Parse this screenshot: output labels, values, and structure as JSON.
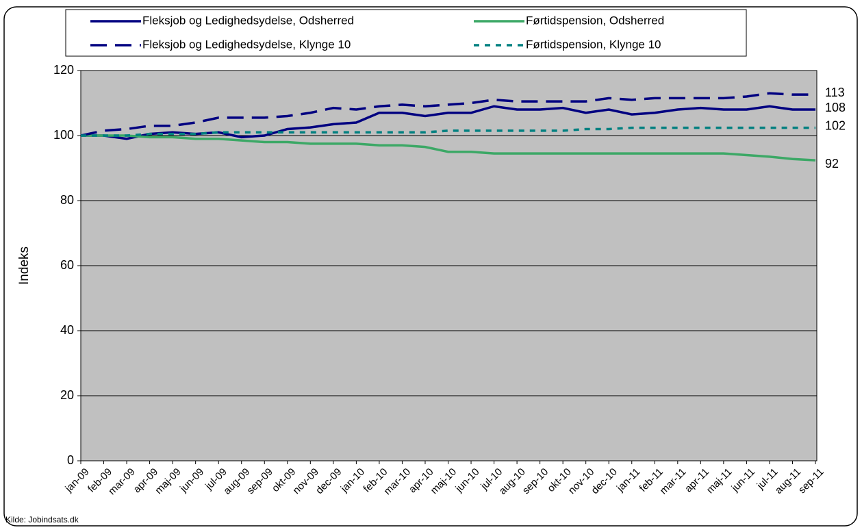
{
  "chart_data": {
    "type": "line",
    "ylabel": "Indeks",
    "source": "Kilde: Jobindsats.dk",
    "categories": [
      "jan-09",
      "feb-09",
      "mar-09",
      "apr-09",
      "maj-09",
      "jun-09",
      "jul-09",
      "aug-09",
      "sep-09",
      "okt-09",
      "nov-09",
      "dec-09",
      "jan-10",
      "feb-10",
      "mar-10",
      "apr-10",
      "maj-10",
      "jun-10",
      "jul-10",
      "aug-10",
      "sep-10",
      "okt-10",
      "nov-10",
      "dec-10",
      "jan-11",
      "feb-11",
      "mar-11",
      "apr-11",
      "maj-11",
      "jun-11",
      "jul-11",
      "aug-11",
      "sep-11"
    ],
    "series": [
      {
        "name": "Fleksjob og Ledighedsydelse, Odsherred",
        "color": "#000080",
        "dash": "solid",
        "values": [
          100,
          100,
          99,
          100.5,
          101,
          100.5,
          101,
          99.5,
          100,
          102,
          102.5,
          103.5,
          104,
          107,
          107,
          106,
          107,
          107,
          109,
          108,
          108,
          108.5,
          107,
          108,
          106.5,
          107,
          108,
          108.5,
          108,
          108,
          109,
          108,
          108
        ],
        "value_labels": [
          null,
          null,
          null,
          null,
          null,
          null,
          null,
          null,
          null,
          null,
          null,
          null,
          null,
          null,
          null,
          null,
          null,
          null,
          null,
          null,
          null,
          null,
          null,
          null,
          null,
          null,
          null,
          null,
          null,
          null,
          null,
          null,
          "108"
        ]
      },
      {
        "name": "Førtidspension, Odsherred",
        "color": "#3ca866",
        "dash": "solid",
        "values": [
          100,
          100,
          100,
          99.5,
          99.5,
          99,
          99,
          98.5,
          98,
          98,
          97.5,
          97.5,
          97.5,
          97,
          97,
          96.5,
          95,
          95,
          94.5,
          94.5,
          94.5,
          94.5,
          94.5,
          94.5,
          94.5,
          94.5,
          94.5,
          94.5,
          94.5,
          94,
          93.5,
          92.8,
          92.4
        ],
        "value_labels": [
          null,
          null,
          null,
          null,
          null,
          null,
          null,
          null,
          null,
          null,
          null,
          null,
          null,
          null,
          null,
          null,
          null,
          null,
          null,
          null,
          null,
          null,
          null,
          null,
          null,
          null,
          null,
          null,
          null,
          null,
          null,
          null,
          "92"
        ]
      },
      {
        "name": "Fleksjob og Ledighedsydelse, Klynge 10",
        "color": "#000080",
        "dash": "dashed",
        "values": [
          100,
          101.5,
          102,
          103,
          103,
          104,
          105.5,
          105.5,
          105.5,
          106,
          107,
          108.5,
          108,
          109,
          109.5,
          109,
          109.5,
          110,
          111,
          110.5,
          110.5,
          110.5,
          110.5,
          111.5,
          111,
          111.5,
          111.5,
          111.5,
          111.5,
          112,
          113,
          112.6,
          112.6
        ],
        "value_labels": [
          null,
          null,
          null,
          null,
          null,
          null,
          null,
          null,
          null,
          null,
          null,
          null,
          null,
          null,
          null,
          null,
          null,
          null,
          null,
          null,
          null,
          null,
          null,
          null,
          null,
          null,
          null,
          null,
          null,
          null,
          null,
          null,
          "113"
        ]
      },
      {
        "name": "Førtidspension, Klynge 10",
        "color": "#008080",
        "dash": "dotted",
        "values": [
          100,
          100,
          100,
          100.5,
          100.5,
          100.5,
          101,
          101,
          101,
          101,
          101,
          101,
          101,
          101,
          101,
          101,
          101.5,
          101.5,
          101.5,
          101.5,
          101.5,
          101.5,
          102,
          102,
          102.4,
          102.4,
          102.4,
          102.4,
          102.4,
          102.4,
          102.4,
          102.4,
          102.4
        ],
        "value_labels": [
          null,
          null,
          null,
          null,
          null,
          null,
          null,
          null,
          null,
          null,
          null,
          null,
          null,
          null,
          null,
          null,
          null,
          null,
          null,
          null,
          null,
          null,
          null,
          null,
          null,
          null,
          null,
          null,
          null,
          null,
          null,
          null,
          "102"
        ]
      }
    ],
    "ylim": [
      0,
      120
    ],
    "yticks": [
      0,
      20,
      40,
      60,
      80,
      100,
      120
    ],
    "grid": true
  }
}
